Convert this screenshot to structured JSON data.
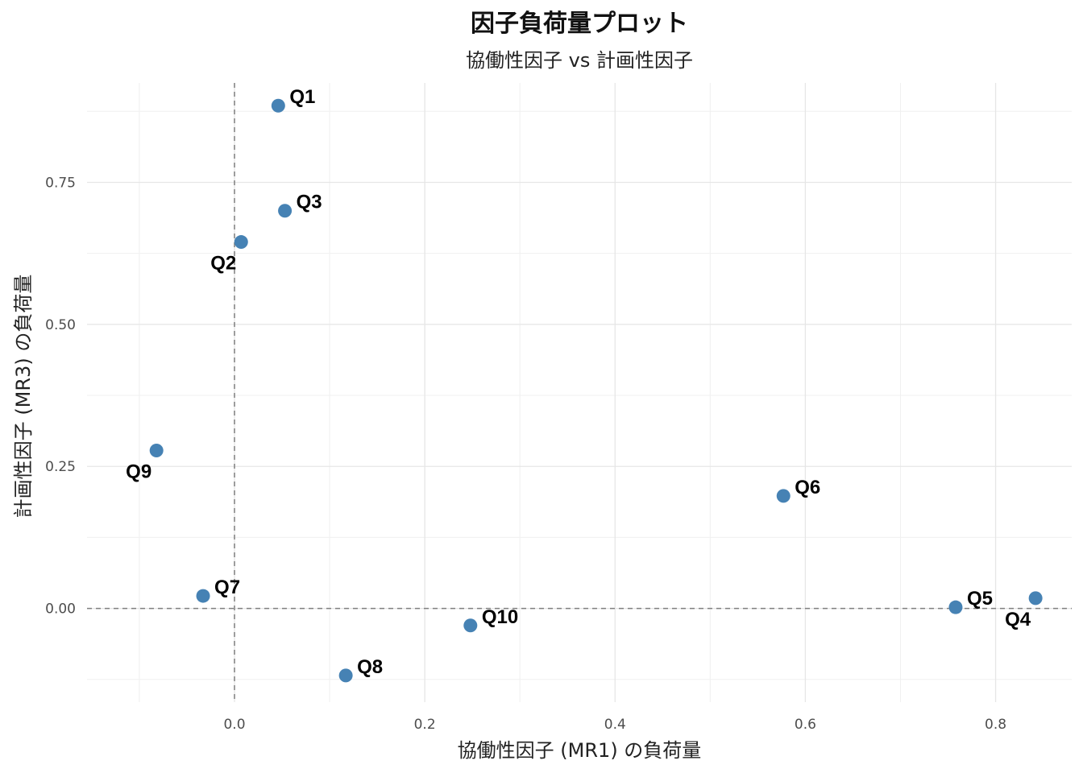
{
  "chart_data": {
    "type": "scatter",
    "title": "因子負荷量プロット",
    "subtitle": "協働性因子 vs 計画性因子",
    "xlabel": "協働性因子 (MR1) の負荷量",
    "ylabel": "計画性因子 (MR3) の負荷量",
    "xlim": [
      -0.155,
      0.88
    ],
    "ylim": [
      -0.165,
      0.925
    ],
    "x_ticks": [
      0.0,
      0.2,
      0.4,
      0.6,
      0.8
    ],
    "x_tick_labels": [
      "0.0",
      "0.2",
      "0.4",
      "0.6",
      "0.8"
    ],
    "y_ticks": [
      0.0,
      0.25,
      0.5,
      0.75
    ],
    "y_tick_labels": [
      "0.00",
      "0.25",
      "0.50",
      "0.75"
    ],
    "grid": true,
    "reference_lines": {
      "x": 0,
      "y": 0,
      "style": "dashed"
    },
    "point_color": "#4682B4",
    "points": [
      {
        "label": "Q1",
        "x": 0.046,
        "y": 0.885,
        "label_side": "upper-right"
      },
      {
        "label": "Q2",
        "x": 0.007,
        "y": 0.645,
        "label_side": "lower-left"
      },
      {
        "label": "Q3",
        "x": 0.053,
        "y": 0.7,
        "label_side": "upper-right"
      },
      {
        "label": "Q4",
        "x": 0.842,
        "y": 0.018,
        "label_side": "lower-left"
      },
      {
        "label": "Q5",
        "x": 0.758,
        "y": 0.002,
        "label_side": "upper-right"
      },
      {
        "label": "Q6",
        "x": 0.577,
        "y": 0.198,
        "label_side": "upper-right"
      },
      {
        "label": "Q7",
        "x": -0.033,
        "y": 0.022,
        "label_side": "upper-right"
      },
      {
        "label": "Q8",
        "x": 0.117,
        "y": -0.118,
        "label_side": "upper-right"
      },
      {
        "label": "Q9",
        "x": -0.082,
        "y": 0.278,
        "label_side": "lower-left"
      },
      {
        "label": "Q10",
        "x": 0.248,
        "y": -0.03,
        "label_side": "upper-right"
      }
    ]
  }
}
